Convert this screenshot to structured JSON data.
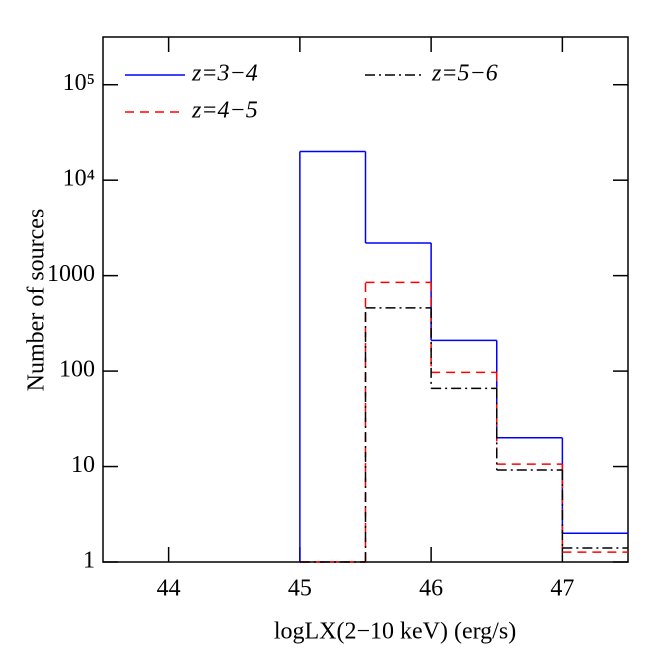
{
  "chart_data": {
    "type": "histogram",
    "xlabel": "logLX(2−10 keV) (erg/s)",
    "ylabel": "Number of sources",
    "bins": [
      45,
      45.5,
      46,
      46.5,
      47,
      47.5
    ],
    "series": [
      {
        "name": "z=3−4",
        "color": "#0000ff",
        "dash": "solid",
        "values": [
          20000,
          2200,
          210,
          20,
          2
        ]
      },
      {
        "name": "z=4−5",
        "color": "#ff0000",
        "dash": "dashed",
        "values": [
          0,
          850,
          97,
          10.6,
          1.27
        ]
      },
      {
        "name": "z=5−6",
        "color": "#000000",
        "dash": "dashdot",
        "values": [
          0,
          460,
          66,
          9.2,
          1.4
        ]
      }
    ],
    "xlim": [
      43.5,
      47.5
    ],
    "xticks": [
      44,
      45,
      46,
      47
    ],
    "ylim": [
      1,
      316228
    ],
    "ylog": true,
    "yticks": [
      1,
      10,
      100,
      1000,
      {
        "value": 10000,
        "label": "10⁴"
      },
      {
        "value": 100000,
        "label": "10⁵"
      }
    ]
  }
}
